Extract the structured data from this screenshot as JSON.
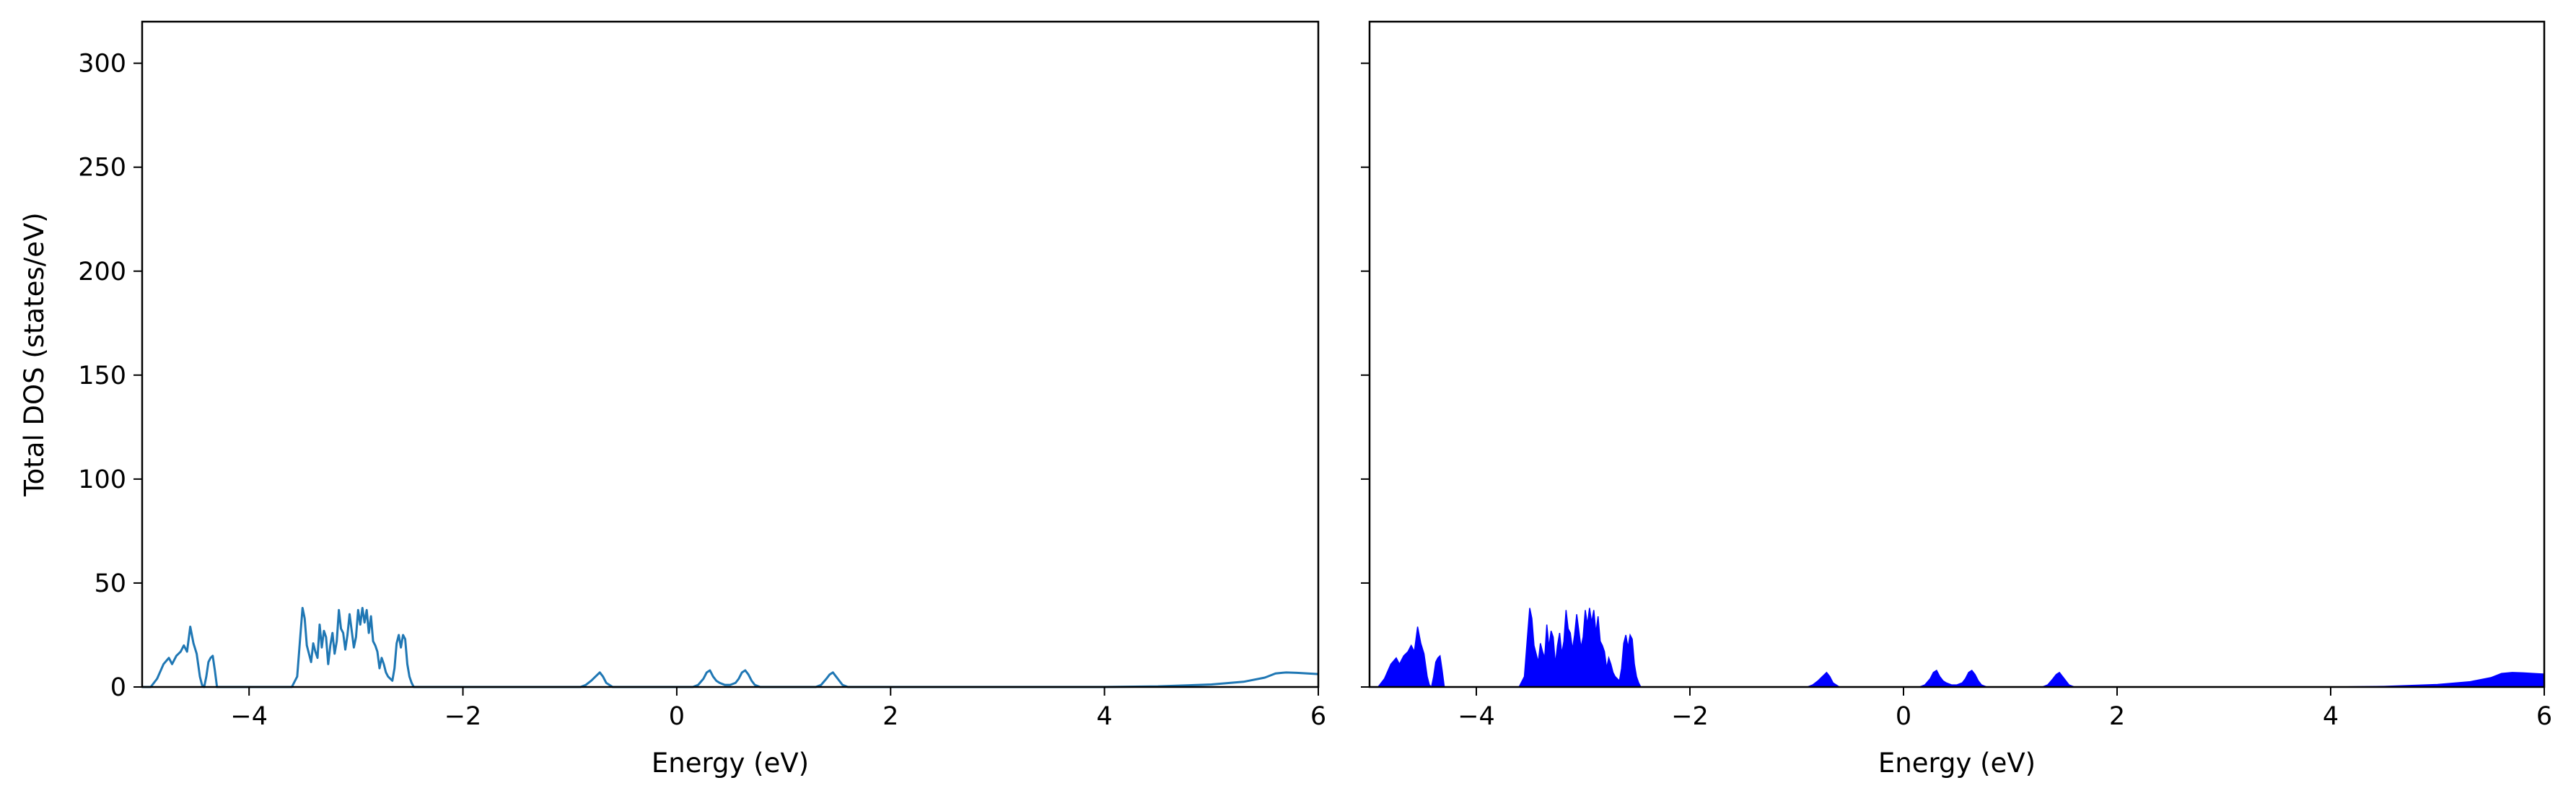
{
  "figure": {
    "background": "#ffffff",
    "shared_y": true
  },
  "chart_data": [
    {
      "type": "line",
      "title": "",
      "xlabel": "Energy (eV)",
      "ylabel": "Total DOS (states/eV)",
      "xlim": [
        -5,
        6
      ],
      "ylim": [
        0,
        320
      ],
      "xticks": [
        -4,
        -2,
        0,
        2,
        4,
        6
      ],
      "xtick_labels": [
        "−4",
        "−2",
        "0",
        "2",
        "4",
        "6"
      ],
      "yticks": [
        0,
        50,
        100,
        150,
        200,
        250,
        300
      ],
      "ytick_labels": [
        "0",
        "50",
        "100",
        "150",
        "200",
        "250",
        "300"
      ],
      "grid": false,
      "legend": "none",
      "series": [
        {
          "color": "#1f77b4",
          "style": "line",
          "x": [
            -5.0,
            -4.92,
            -4.86,
            -4.8,
            -4.75,
            -4.72,
            -4.68,
            -4.64,
            -4.61,
            -4.58,
            -4.55,
            -4.52,
            -4.49,
            -4.46,
            -4.44,
            -4.42,
            -4.4,
            -4.38,
            -4.36,
            -4.34,
            -4.32,
            -4.3,
            -4.28,
            -4.26,
            -4.24,
            -3.6,
            -3.55,
            -3.52,
            -3.5,
            -3.48,
            -3.46,
            -3.44,
            -3.42,
            -3.4,
            -3.38,
            -3.36,
            -3.34,
            -3.32,
            -3.3,
            -3.28,
            -3.26,
            -3.24,
            -3.22,
            -3.2,
            -3.18,
            -3.16,
            -3.14,
            -3.12,
            -3.1,
            -3.08,
            -3.06,
            -3.04,
            -3.02,
            -3.0,
            -2.98,
            -2.96,
            -2.94,
            -2.92,
            -2.9,
            -2.88,
            -2.86,
            -2.84,
            -2.82,
            -2.8,
            -2.78,
            -2.76,
            -2.74,
            -2.72,
            -2.7,
            -2.68,
            -2.66,
            -2.64,
            -2.62,
            -2.6,
            -2.58,
            -2.56,
            -2.54,
            -2.52,
            -2.5,
            -2.48,
            -2.46,
            -2.44,
            -2.42,
            -2.4,
            -2.35,
            -0.9,
            -0.85,
            -0.8,
            -0.76,
            -0.72,
            -0.69,
            -0.66,
            -0.63,
            -0.6,
            -0.55,
            0.15,
            0.2,
            0.25,
            0.28,
            0.31,
            0.34,
            0.37,
            0.4,
            0.45,
            0.5,
            0.55,
            0.58,
            0.61,
            0.64,
            0.67,
            0.7,
            0.73,
            0.78,
            1.3,
            1.35,
            1.4,
            1.43,
            1.46,
            1.49,
            1.52,
            1.55,
            1.6,
            1.7,
            4.0,
            4.5,
            5.0,
            5.3,
            5.5,
            5.6,
            5.7,
            5.8,
            5.9,
            6.0
          ],
          "y": [
            0,
            0,
            4,
            11,
            14,
            11,
            15,
            17,
            20,
            17,
            29,
            21,
            16,
            5,
            1,
            0,
            5,
            12,
            14,
            15,
            8,
            0,
            0,
            0,
            0,
            0,
            5,
            25,
            38,
            33,
            20,
            16,
            12,
            21,
            17,
            14,
            30,
            19,
            27,
            24,
            11,
            20,
            26,
            16,
            22,
            37,
            28,
            26,
            18,
            25,
            35,
            27,
            19,
            24,
            37,
            30,
            38,
            31,
            37,
            26,
            34,
            22,
            20,
            17,
            9,
            14,
            11,
            7,
            5,
            4,
            3,
            9,
            21,
            25,
            19,
            25,
            23,
            11,
            5,
            2,
            0,
            0,
            0,
            0,
            0,
            0,
            1,
            3,
            5,
            7,
            5,
            2,
            1,
            0,
            0,
            0,
            1,
            4,
            7,
            8,
            5,
            3,
            2,
            1,
            1,
            2,
            4,
            7,
            8,
            6,
            3,
            1,
            0,
            0,
            1,
            4,
            6,
            7,
            5,
            3,
            1,
            0,
            0,
            0,
            0.3,
            1.2,
            2.5,
            4.5,
            6.5,
            7,
            6.8,
            6.5,
            6.2
          ]
        }
      ]
    },
    {
      "type": "area",
      "title": "",
      "xlabel": "Energy (eV)",
      "ylabel": "",
      "xlim": [
        -5,
        6
      ],
      "ylim": [
        0,
        320
      ],
      "xticks": [
        -4,
        -2,
        0,
        2,
        4,
        6
      ],
      "xtick_labels": [
        "−4",
        "−2",
        "0",
        "2",
        "4",
        "6"
      ],
      "yticks": [
        0,
        50,
        100,
        150,
        200,
        250,
        300
      ],
      "ytick_labels": [],
      "grid": false,
      "legend": "none",
      "series": [
        {
          "color": "#0000ff",
          "style": "filled",
          "x": [
            -5.0,
            -4.92,
            -4.86,
            -4.8,
            -4.75,
            -4.72,
            -4.68,
            -4.64,
            -4.61,
            -4.58,
            -4.55,
            -4.52,
            -4.49,
            -4.46,
            -4.44,
            -4.42,
            -4.4,
            -4.38,
            -4.36,
            -4.34,
            -4.32,
            -4.3,
            -4.28,
            -4.26,
            -4.24,
            -3.6,
            -3.55,
            -3.52,
            -3.5,
            -3.48,
            -3.46,
            -3.44,
            -3.42,
            -3.4,
            -3.38,
            -3.36,
            -3.34,
            -3.32,
            -3.3,
            -3.28,
            -3.26,
            -3.24,
            -3.22,
            -3.2,
            -3.18,
            -3.16,
            -3.14,
            -3.12,
            -3.1,
            -3.08,
            -3.06,
            -3.04,
            -3.02,
            -3.0,
            -2.98,
            -2.96,
            -2.94,
            -2.92,
            -2.9,
            -2.88,
            -2.86,
            -2.84,
            -2.82,
            -2.8,
            -2.78,
            -2.76,
            -2.74,
            -2.72,
            -2.7,
            -2.68,
            -2.66,
            -2.64,
            -2.62,
            -2.6,
            -2.58,
            -2.56,
            -2.54,
            -2.52,
            -2.5,
            -2.48,
            -2.46,
            -2.44,
            -2.42,
            -2.4,
            -2.35,
            -0.9,
            -0.85,
            -0.8,
            -0.76,
            -0.72,
            -0.69,
            -0.66,
            -0.63,
            -0.6,
            -0.55,
            0.15,
            0.2,
            0.25,
            0.28,
            0.31,
            0.34,
            0.37,
            0.4,
            0.45,
            0.5,
            0.55,
            0.58,
            0.61,
            0.64,
            0.67,
            0.7,
            0.73,
            0.78,
            1.3,
            1.35,
            1.4,
            1.43,
            1.46,
            1.49,
            1.52,
            1.55,
            1.6,
            1.7,
            4.0,
            4.5,
            5.0,
            5.3,
            5.5,
            5.6,
            5.7,
            5.8,
            5.9,
            6.0
          ],
          "y": [
            0,
            0,
            4,
            11,
            14,
            11,
            15,
            17,
            20,
            17,
            29,
            21,
            16,
            5,
            1,
            0,
            5,
            12,
            14,
            15,
            8,
            0,
            0,
            0,
            0,
            0,
            5,
            25,
            38,
            33,
            20,
            16,
            12,
            21,
            17,
            14,
            30,
            19,
            27,
            24,
            11,
            20,
            26,
            16,
            22,
            37,
            28,
            26,
            18,
            25,
            35,
            27,
            19,
            24,
            37,
            30,
            38,
            31,
            37,
            26,
            34,
            22,
            20,
            17,
            9,
            14,
            11,
            7,
            5,
            4,
            3,
            9,
            21,
            25,
            19,
            25,
            23,
            11,
            5,
            2,
            0,
            0,
            0,
            0,
            0,
            0,
            1,
            3,
            5,
            7,
            5,
            2,
            1,
            0,
            0,
            0,
            1,
            4,
            7,
            8,
            5,
            3,
            2,
            1,
            1,
            2,
            4,
            7,
            8,
            6,
            3,
            1,
            0,
            0,
            1,
            4,
            6,
            7,
            5,
            3,
            1,
            0,
            0,
            0,
            0.3,
            1.2,
            2.5,
            4.5,
            6.5,
            7,
            6.8,
            6.5,
            6.2
          ]
        }
      ]
    }
  ]
}
